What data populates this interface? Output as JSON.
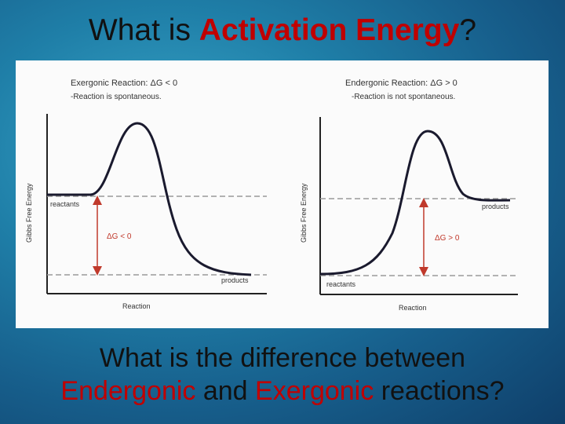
{
  "title": {
    "prefix": "What is ",
    "highlight": "Activation Energy",
    "suffix": "?"
  },
  "left_diagram": {
    "header_line1": "Exergonic Reaction: ΔG < 0",
    "header_line2": "-Reaction is spontaneous.",
    "y_axis_label": "Gibbs Free Energy",
    "x_axis_label": "Reaction",
    "start_label": "reactants",
    "end_label": "products",
    "delta_label": "ΔG < 0"
  },
  "right_diagram": {
    "header_line1": "Endergonic Reaction: ΔG > 0",
    "header_line2": "-Reaction is not spontaneous.",
    "y_axis_label": "Gibbs Free Energy",
    "x_axis_label": "Reaction",
    "start_label": "reactants",
    "end_label": "products",
    "delta_label": "ΔG > 0"
  },
  "footer": {
    "line1": "What is the difference between",
    "word1": "Endergonic",
    "and": " and ",
    "word2": "Exergonic",
    "end": " reactions?"
  },
  "colors": {
    "highlight": "#c00000",
    "arrow": "#c0392b",
    "curve": "#1a1a2e"
  }
}
